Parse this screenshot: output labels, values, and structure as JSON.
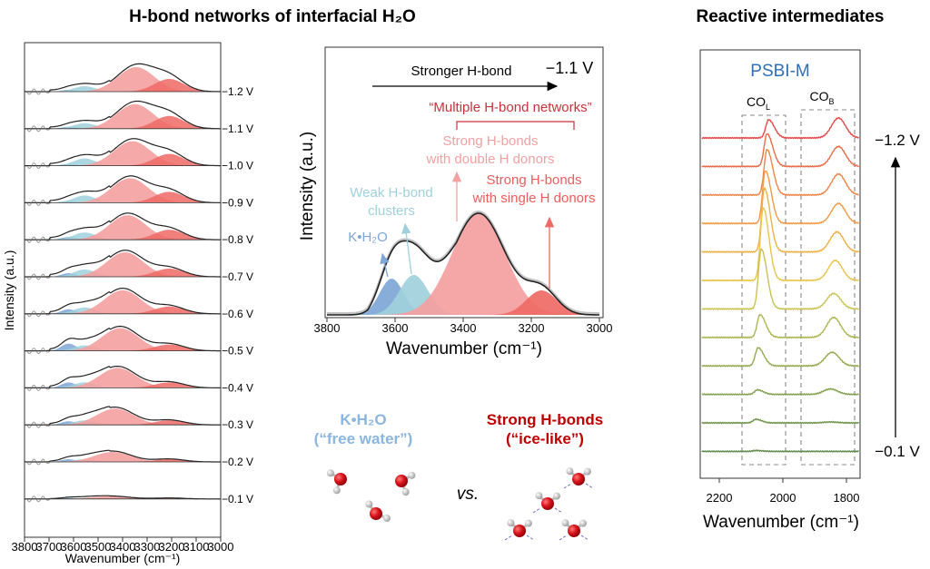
{
  "titles": {
    "left": "H-bond networks of interfacial H₂O",
    "right": "Reactive intermediates"
  },
  "colors": {
    "kh2o": "#7ea6d6",
    "weak": "#9fd0dc",
    "double": "#f4a0a0",
    "single": "#ee6a65",
    "envelope": "#222222",
    "annotation_dark_red": "#c8323a",
    "free_water": "#8ab6e0",
    "ice_like": "#c00000",
    "psbi": "#2f6fb5"
  },
  "chart_data": [
    {
      "type": "area",
      "name": "stacked-spectra-h2o",
      "xlabel": "Wavenumber (cm⁻¹)",
      "ylabel": "Intensity (a.u.)",
      "xlim": [
        3800,
        3000
      ],
      "xticks": [
        "3800",
        "3700",
        "3600",
        "3500",
        "3400",
        "3300",
        "3200",
        "3100",
        "3000"
      ],
      "component_order": [
        "kh2o",
        "weak",
        "double",
        "single"
      ],
      "component_widths": {
        "kh2o": 30,
        "weak": 45,
        "double": 75,
        "single": 60
      },
      "component_centers": {
        "kh2o": 3620,
        "weak": 3555,
        "single": 3210
      },
      "series": [
        {
          "label": "−1.2 V",
          "kh2o": 2,
          "weak": 6,
          "double": 27,
          "double_center": 3345,
          "single": 14
        },
        {
          "label": "−1.1 V",
          "kh2o": 2,
          "weak": 6,
          "double": 27,
          "double_center": 3350,
          "single": 14
        },
        {
          "label": "−1.0 V",
          "kh2o": 2,
          "weak": 8,
          "double": 27,
          "double_center": 3360,
          "single": 13
        },
        {
          "label": "−0.9 V",
          "kh2o": 2,
          "weak": 8,
          "double": 27,
          "double_center": 3370,
          "single": 12
        },
        {
          "label": "−0.8 V",
          "kh2o": 3,
          "weak": 8,
          "double": 27,
          "double_center": 3380,
          "single": 11
        },
        {
          "label": "−0.7 V",
          "kh2o": 4,
          "weak": 8,
          "double": 27,
          "double_center": 3390,
          "single": 9
        },
        {
          "label": "−0.6 V",
          "kh2o": 5,
          "weak": 7,
          "double": 26,
          "double_center": 3400,
          "single": 8
        },
        {
          "label": "−0.5 V",
          "kh2o": 8,
          "weak": 6,
          "double": 25,
          "double_center": 3410,
          "single": 7
        },
        {
          "label": "−0.4 V",
          "kh2o": 6,
          "weak": 6,
          "double": 22,
          "double_center": 3420,
          "single": 6
        },
        {
          "label": "−0.3 V",
          "kh2o": 4,
          "weak": 5,
          "double": 18,
          "double_center": 3430,
          "single": 5
        },
        {
          "label": "−0.2 V",
          "kh2o": 3,
          "weak": 3,
          "double": 11,
          "double_center": 3440,
          "single": 3
        },
        {
          "label": "−0.1 V",
          "kh2o": 1,
          "weak": 1,
          "double": 3,
          "double_center": 3450,
          "single": 1
        }
      ]
    },
    {
      "type": "area",
      "name": "deconvoluted-spectrum-1p1V",
      "potential": "−1.1 V",
      "xlabel": "Wavenumber (cm⁻¹)",
      "ylabel": "Intensity (a.u.)",
      "xlim": [
        3800,
        3000
      ],
      "xticks": [
        "3800",
        "3600",
        "3400",
        "3200",
        "3000"
      ],
      "components": [
        {
          "key": "kh2o",
          "center": 3610,
          "height": 40,
          "width": 35
        },
        {
          "key": "weak",
          "center": 3545,
          "height": 44,
          "width": 42
        },
        {
          "key": "double",
          "center": 3355,
          "height": 112,
          "width": 78
        },
        {
          "key": "single",
          "center": 3170,
          "height": 27,
          "width": 45
        }
      ],
      "annotations": {
        "stronger": "Stronger H-bond",
        "multiple": "“Multiple H-bond networks”",
        "double_1": "Strong H-bonds",
        "double_2": "with double H donors",
        "single_1": "Strong H-bonds",
        "single_2": "with single H donors",
        "weak_1": "Weak H-bond",
        "weak_2": "clusters",
        "kh2o": "K•H₂O"
      }
    },
    {
      "type": "line",
      "name": "co-intermediates-psbi-m",
      "title": "PSBI-M",
      "xlabel": "Wavenumber (cm⁻¹)",
      "xlim": [
        2260,
        1757
      ],
      "xticks": [
        "2200",
        "2000",
        "1800"
      ],
      "band_labels": [
        {
          "main": "CO",
          "sub": "L"
        },
        {
          "main": "CO",
          "sub": "B"
        }
      ],
      "potential_top": "−1.2 V",
      "potential_bottom": "−0.1 V",
      "series": [
        {
          "col_center": 2045,
          "col": 20,
          "cob_center": 1825,
          "cob": 22,
          "color": "#e8474a"
        },
        {
          "col_center": 2050,
          "col": 36,
          "cob_center": 1825,
          "cob": 22,
          "color": "#ec6a48"
        },
        {
          "col_center": 2050,
          "col": 50,
          "cob_center": 1825,
          "cob": 23,
          "color": "#ef8446"
        },
        {
          "col_center": 2055,
          "col": 58,
          "cob_center": 1825,
          "cob": 22,
          "color": "#f29a45"
        },
        {
          "col_center": 2058,
          "col": 70,
          "cob_center": 1830,
          "cob": 22,
          "color": "#f0b043"
        },
        {
          "col_center": 2062,
          "col": 80,
          "cob_center": 1835,
          "cob": 22,
          "color": "#e8c548"
        },
        {
          "col_center": 2068,
          "col": 66,
          "cob_center": 1840,
          "cob": 17,
          "color": "#c9c24f"
        },
        {
          "col_center": 2072,
          "col": 25,
          "cob_center": 1840,
          "cob": 22,
          "color": "#abb650"
        },
        {
          "col_center": 2078,
          "col": 20,
          "cob_center": 1845,
          "cob": 15,
          "color": "#95aa50"
        },
        {
          "col_center": 2080,
          "col": 5,
          "cob_center": 1850,
          "cob": 6,
          "color": "#84a04f"
        },
        {
          "col_center": 2085,
          "col": 4,
          "cob_center": 1850,
          "cob": 1,
          "color": "#70954c"
        },
        {
          "col_center": 2085,
          "col": 1,
          "cob_center": 1850,
          "cob": 0,
          "color": "#5e8a4a"
        }
      ]
    }
  ],
  "bottom": {
    "free_1": "K•H₂O",
    "free_2": "(“free water”)",
    "ice_1": "Strong H-bonds",
    "ice_2": "(“ice-like”)",
    "vs": "vs."
  }
}
